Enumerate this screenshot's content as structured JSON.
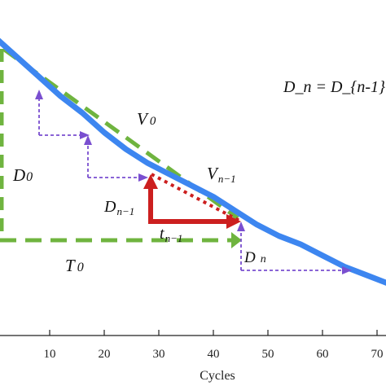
{
  "chart_data": {
    "type": "line",
    "xlabel": "Cycles",
    "ylabel": "",
    "title": "",
    "xlim": [
      0,
      72
    ],
    "x_ticks": [
      "10",
      "20",
      "30",
      "40",
      "50",
      "60",
      "70"
    ],
    "grid": false,
    "series": [
      {
        "color": "#3d86f0",
        "x": [
          0,
          4,
          8,
          12,
          16,
          20,
          24,
          28,
          32,
          36,
          40,
          44,
          48,
          52,
          56,
          60,
          64,
          68,
          72
        ],
        "y": [
          100,
          93,
          86,
          79,
          73,
          66,
          60,
          55,
          51,
          47,
          43,
          38,
          33,
          29,
          26,
          22,
          18,
          15,
          12
        ]
      }
    ],
    "annotations": {
      "formula": "D_n = D_{n-1}",
      "V0": "V",
      "V0_sub": "0",
      "Vn1": "V",
      "Vn1_sub": "n−1",
      "D0": "D",
      "D0_sub": "0",
      "Dn1": "D",
      "Dn1_sub": "n−1",
      "tn1": "t",
      "tn1_sub": "n−1",
      "T0": "T",
      "T0_sub": "0",
      "Dn": "D",
      "Dn_sub": "n"
    },
    "colors": {
      "degradation": "#3d86f0",
      "tangent": "#6fb43f",
      "step": "#cc1f1f",
      "staircase": "#7a4fd0"
    }
  }
}
